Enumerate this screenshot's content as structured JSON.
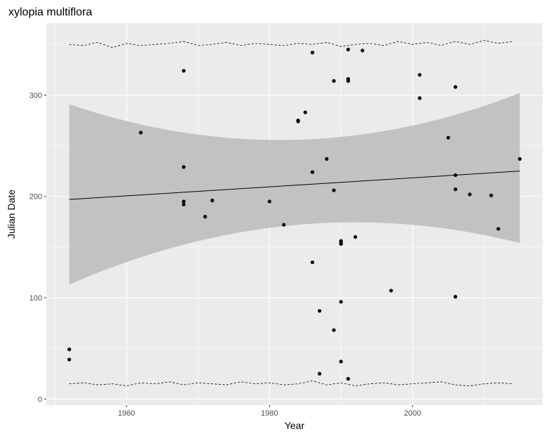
{
  "chart_data": {
    "type": "scatter",
    "title": "xylopia multiflora",
    "xlabel": "Year",
    "ylabel": "Julian Date",
    "xlim": [
      1948.8,
      2018.2
    ],
    "ylim": [
      -6,
      371
    ],
    "x_ticks": [
      1960,
      1980,
      2000
    ],
    "y_ticks": [
      0,
      100,
      200,
      300
    ],
    "grid": true,
    "colors": {
      "panel": "#ebebeb",
      "grid": "#ffffff",
      "points": "#000000",
      "ribbon": "#bebebe",
      "line": "#000000"
    },
    "points": [
      {
        "x": 1952,
        "y": 49
      },
      {
        "x": 1952,
        "y": 39
      },
      {
        "x": 1962,
        "y": 263
      },
      {
        "x": 1968,
        "y": 324
      },
      {
        "x": 1968,
        "y": 229
      },
      {
        "x": 1968,
        "y": 195
      },
      {
        "x": 1968,
        "y": 192
      },
      {
        "x": 1971,
        "y": 180
      },
      {
        "x": 1972,
        "y": 196
      },
      {
        "x": 1980,
        "y": 195
      },
      {
        "x": 1982,
        "y": 172
      },
      {
        "x": 1984,
        "y": 275
      },
      {
        "x": 1984,
        "y": 274
      },
      {
        "x": 1985,
        "y": 283
      },
      {
        "x": 1986,
        "y": 342
      },
      {
        "x": 1986,
        "y": 224
      },
      {
        "x": 1986,
        "y": 135
      },
      {
        "x": 1987,
        "y": 87
      },
      {
        "x": 1987,
        "y": 25
      },
      {
        "x": 1988,
        "y": 237
      },
      {
        "x": 1989,
        "y": 314
      },
      {
        "x": 1989,
        "y": 206
      },
      {
        "x": 1989,
        "y": 68
      },
      {
        "x": 1990,
        "y": 156
      },
      {
        "x": 1990,
        "y": 154
      },
      {
        "x": 1990,
        "y": 153
      },
      {
        "x": 1990,
        "y": 96
      },
      {
        "x": 1990,
        "y": 37
      },
      {
        "x": 1991,
        "y": 345
      },
      {
        "x": 1991,
        "y": 316
      },
      {
        "x": 1991,
        "y": 314
      },
      {
        "x": 1991,
        "y": 20
      },
      {
        "x": 1992,
        "y": 160
      },
      {
        "x": 1993,
        "y": 344
      },
      {
        "x": 1997,
        "y": 107
      },
      {
        "x": 2001,
        "y": 320
      },
      {
        "x": 2001,
        "y": 297
      },
      {
        "x": 2005,
        "y": 258
      },
      {
        "x": 2006,
        "y": 308
      },
      {
        "x": 2006,
        "y": 221
      },
      {
        "x": 2006,
        "y": 207
      },
      {
        "x": 2006,
        "y": 101
      },
      {
        "x": 2008,
        "y": 202
      },
      {
        "x": 2011,
        "y": 201
      },
      {
        "x": 2012,
        "y": 168
      },
      {
        "x": 2015,
        "y": 237
      }
    ],
    "trend": {
      "x": [
        1952,
        1984,
        2015
      ],
      "y": [
        197,
        212,
        225
      ],
      "lower": [
        113,
        172,
        154
      ],
      "upper": [
        291,
        256,
        302
      ]
    },
    "dashed_upper": {
      "x": [
        1952,
        1954,
        1956,
        1958,
        1960,
        1962,
        1964,
        1966,
        1968,
        1970,
        1972,
        1974,
        1976,
        1978,
        1980,
        1982,
        1984,
        1986,
        1988,
        1990,
        1992,
        1994,
        1996,
        1998,
        2000,
        2002,
        2004,
        2006,
        2008,
        2010,
        2012,
        2014
      ],
      "y": [
        350,
        349,
        352,
        347,
        351,
        349,
        350,
        351,
        353,
        349,
        350,
        352,
        349,
        351,
        350,
        349,
        351,
        350,
        352,
        348,
        350,
        351,
        349,
        353,
        350,
        352,
        349,
        353,
        350,
        354,
        351,
        353
      ]
    },
    "dashed_lower": {
      "x": [
        1952,
        1954,
        1956,
        1958,
        1960,
        1962,
        1964,
        1966,
        1968,
        1970,
        1972,
        1974,
        1976,
        1978,
        1980,
        1982,
        1984,
        1986,
        1988,
        1990,
        1992,
        1994,
        1996,
        1998,
        2000,
        2002,
        2004,
        2006,
        2008,
        2010,
        2012,
        2014
      ],
      "y": [
        15,
        16,
        14,
        15,
        13,
        16,
        15,
        17,
        14,
        16,
        15,
        14,
        17,
        15,
        16,
        14,
        15,
        18,
        14,
        16,
        13,
        15,
        16,
        14,
        15,
        16,
        17,
        14,
        13,
        15,
        16,
        15
      ]
    }
  }
}
